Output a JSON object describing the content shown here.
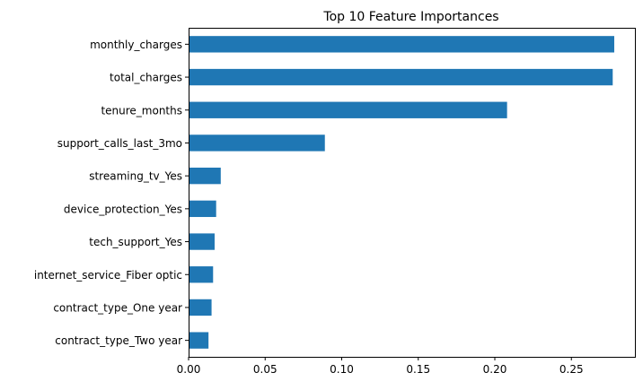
{
  "chart_data": {
    "type": "bar",
    "orientation": "horizontal",
    "title": "Top 10 Feature Importances",
    "xlabel": "",
    "ylabel": "",
    "xlim": [
      0,
      0.2915
    ],
    "xticks": [
      0.0,
      0.05,
      0.1,
      0.15,
      0.2,
      0.25
    ],
    "xtick_labels": [
      "0.00",
      "0.05",
      "0.10",
      "0.15",
      "0.20",
      "0.25"
    ],
    "grid": false,
    "legend": "none",
    "bar_color": "#1f77b4",
    "categories": [
      "monthly_charges",
      "total_charges",
      "tenure_months",
      "support_calls_last_3mo",
      "streaming_tv_Yes",
      "device_protection_Yes",
      "tech_support_Yes",
      "internet_service_Fiber optic",
      "contract_type_One year",
      "contract_type_Two year"
    ],
    "values": [
      0.278,
      0.277,
      0.208,
      0.089,
      0.021,
      0.018,
      0.017,
      0.016,
      0.015,
      0.013
    ]
  }
}
